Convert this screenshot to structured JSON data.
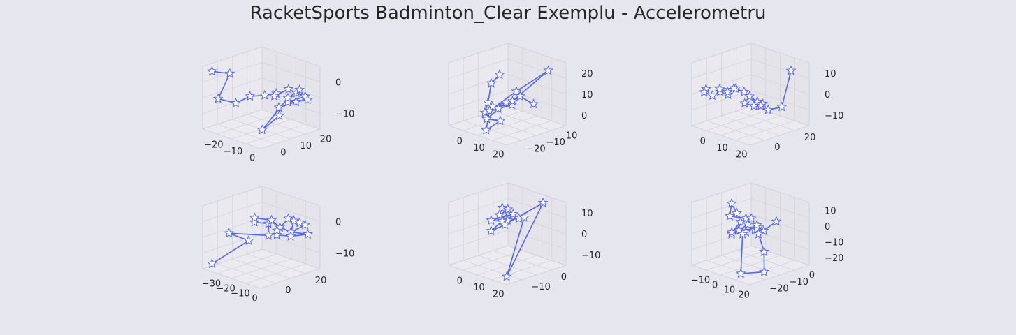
{
  "title": "RacketSports Badminton_Clear Exemplu - Accelerometru",
  "colors": {
    "background": "#e6e6ef",
    "line": "#5566ee",
    "marker_fill": "#ffffff",
    "pane": "#ebebf1",
    "grid": "#d3d3d8"
  },
  "chart_data": {
    "type": "scatter",
    "subtype": "3d-line-with-star-markers",
    "panels": [
      {
        "x_ticks": [
          "−20",
          "−10",
          "0"
        ],
        "y_ticks": [
          "0",
          "10",
          "20"
        ],
        "z_ticks": [
          "0",
          "−10"
        ],
        "points": [
          [
            -28,
            -2,
            3
          ],
          [
            -20,
            0,
            3
          ],
          [
            -24,
            -2,
            -9
          ],
          [
            -16,
            0,
            -10
          ],
          [
            -14,
            4,
            -8
          ],
          [
            -8,
            6,
            -7
          ],
          [
            -4,
            8,
            -6
          ],
          [
            2,
            4,
            -4
          ],
          [
            4,
            8,
            -2
          ],
          [
            2,
            12,
            -6
          ],
          [
            4,
            14,
            -8
          ],
          [
            0,
            10,
            -10
          ],
          [
            2,
            16,
            -11
          ],
          [
            -2,
            14,
            -12
          ],
          [
            -6,
            10,
            -14
          ],
          [
            -2,
            8,
            -16
          ],
          [
            -6,
            4,
            -22
          ],
          [
            0,
            10,
            -8
          ],
          [
            4,
            12,
            -4
          ]
        ]
      },
      {
        "x_ticks": [
          "0",
          "10",
          "20"
        ],
        "y_ticks": [
          "−20",
          "−10",
          "10"
        ],
        "z_ticks": [
          "20",
          "10",
          "0"
        ],
        "points": [
          [
            -10,
            -2,
            6
          ],
          [
            -10,
            -4,
            2
          ],
          [
            -6,
            -6,
            -8
          ],
          [
            -2,
            -8,
            -12
          ],
          [
            2,
            -6,
            -10
          ],
          [
            6,
            -4,
            -8
          ],
          [
            4,
            -8,
            -6
          ],
          [
            8,
            -6,
            -4
          ],
          [
            6,
            -10,
            -12
          ],
          [
            10,
            -8,
            -14
          ],
          [
            12,
            -12,
            -16
          ],
          [
            8,
            -10,
            -6
          ],
          [
            16,
            -6,
            6
          ],
          [
            28,
            -2,
            20
          ],
          [
            26,
            -10,
            6
          ],
          [
            6,
            -2,
            -4
          ],
          [
            10,
            0,
            -10
          ]
        ]
      },
      {
        "x_ticks": [
          "0",
          "10",
          "20"
        ],
        "y_ticks": [
          "0",
          "20"
        ],
        "z_ticks": [
          "10",
          "0",
          "−10"
        ],
        "points": [
          [
            -6,
            -4,
            -1
          ],
          [
            -10,
            -2,
            -6
          ],
          [
            -8,
            2,
            -10
          ],
          [
            -4,
            4,
            -6
          ],
          [
            0,
            6,
            -8
          ],
          [
            2,
            4,
            -4
          ],
          [
            -2,
            2,
            -2
          ],
          [
            4,
            8,
            -2
          ],
          [
            0,
            10,
            -4
          ],
          [
            6,
            12,
            -6
          ],
          [
            8,
            14,
            -10
          ],
          [
            12,
            16,
            -14
          ],
          [
            14,
            18,
            -16
          ],
          [
            10,
            20,
            -20
          ],
          [
            2,
            22,
            -24
          ],
          [
            -8,
            24,
            -26
          ],
          [
            4,
            30,
            -30
          ],
          [
            20,
            26,
            -20
          ],
          [
            30,
            24,
            16
          ]
        ]
      },
      {
        "x_ticks": [
          "−30",
          "−20",
          "−10",
          "0"
        ],
        "y_ticks": [
          "0",
          "20"
        ],
        "z_ticks": [
          "0",
          "−10"
        ],
        "points": [
          [
            -28,
            -2,
            -24
          ],
          [
            -14,
            4,
            -12
          ],
          [
            -20,
            0,
            -8
          ],
          [
            -4,
            6,
            -8
          ],
          [
            -8,
            8,
            -4
          ],
          [
            -10,
            4,
            -2
          ],
          [
            -6,
            2,
            2
          ],
          [
            -2,
            6,
            0
          ],
          [
            0,
            8,
            -4
          ],
          [
            4,
            10,
            -6
          ],
          [
            2,
            12,
            -2
          ],
          [
            6,
            14,
            -4
          ],
          [
            0,
            12,
            -8
          ],
          [
            4,
            16,
            -10
          ],
          [
            -4,
            14,
            -12
          ],
          [
            -6,
            10,
            -10
          ],
          [
            -2,
            8,
            -6
          ],
          [
            2,
            10,
            0
          ],
          [
            6,
            12,
            -2
          ]
        ]
      },
      {
        "x_ticks": [
          "0",
          "10",
          "20"
        ],
        "y_ticks": [
          "−10",
          "0"
        ],
        "z_ticks": [
          "10",
          "0",
          "−10"
        ],
        "points": [
          [
            -6,
            -4,
            6
          ],
          [
            -2,
            -6,
            4
          ],
          [
            -8,
            -2,
            2
          ],
          [
            -4,
            -4,
            -2
          ],
          [
            0,
            -6,
            0
          ],
          [
            -2,
            -8,
            2
          ],
          [
            2,
            -4,
            4
          ],
          [
            4,
            -6,
            2
          ],
          [
            0,
            -2,
            -2
          ],
          [
            -6,
            -4,
            -4
          ],
          [
            -2,
            -8,
            -6
          ],
          [
            2,
            -6,
            -2
          ],
          [
            18,
            -2,
            16
          ],
          [
            28,
            -14,
            -24
          ],
          [
            4,
            -2,
            0
          ]
        ]
      },
      {
        "x_ticks": [
          "−10",
          "0",
          "10",
          "20"
        ],
        "y_ticks": [
          "−20",
          "−10",
          "0"
        ],
        "z_ticks": [
          "10",
          "0",
          "−10",
          "−20"
        ],
        "points": [
          [
            -24,
            -6,
            2
          ],
          [
            -14,
            -10,
            18
          ],
          [
            -16,
            -10,
            6
          ],
          [
            -14,
            -6,
            0
          ],
          [
            -14,
            -10,
            -10
          ],
          [
            -6,
            -8,
            -8
          ],
          [
            -6,
            -12,
            -4
          ],
          [
            -4,
            -10,
            4
          ],
          [
            0,
            -8,
            6
          ],
          [
            4,
            -10,
            4
          ],
          [
            2,
            -12,
            0
          ],
          [
            4,
            -8,
            -2
          ],
          [
            -4,
            -6,
            -8
          ],
          [
            -2,
            -4,
            -10
          ],
          [
            0,
            -6,
            -4
          ],
          [
            6,
            -8,
            -2
          ],
          [
            14,
            -10,
            6
          ],
          [
            14,
            -14,
            2
          ],
          [
            20,
            -16,
            -30
          ],
          [
            30,
            -12,
            -30
          ],
          [
            22,
            -10,
            -16
          ],
          [
            8,
            -8,
            -6
          ],
          [
            4,
            -2,
            -2
          ]
        ]
      }
    ]
  }
}
